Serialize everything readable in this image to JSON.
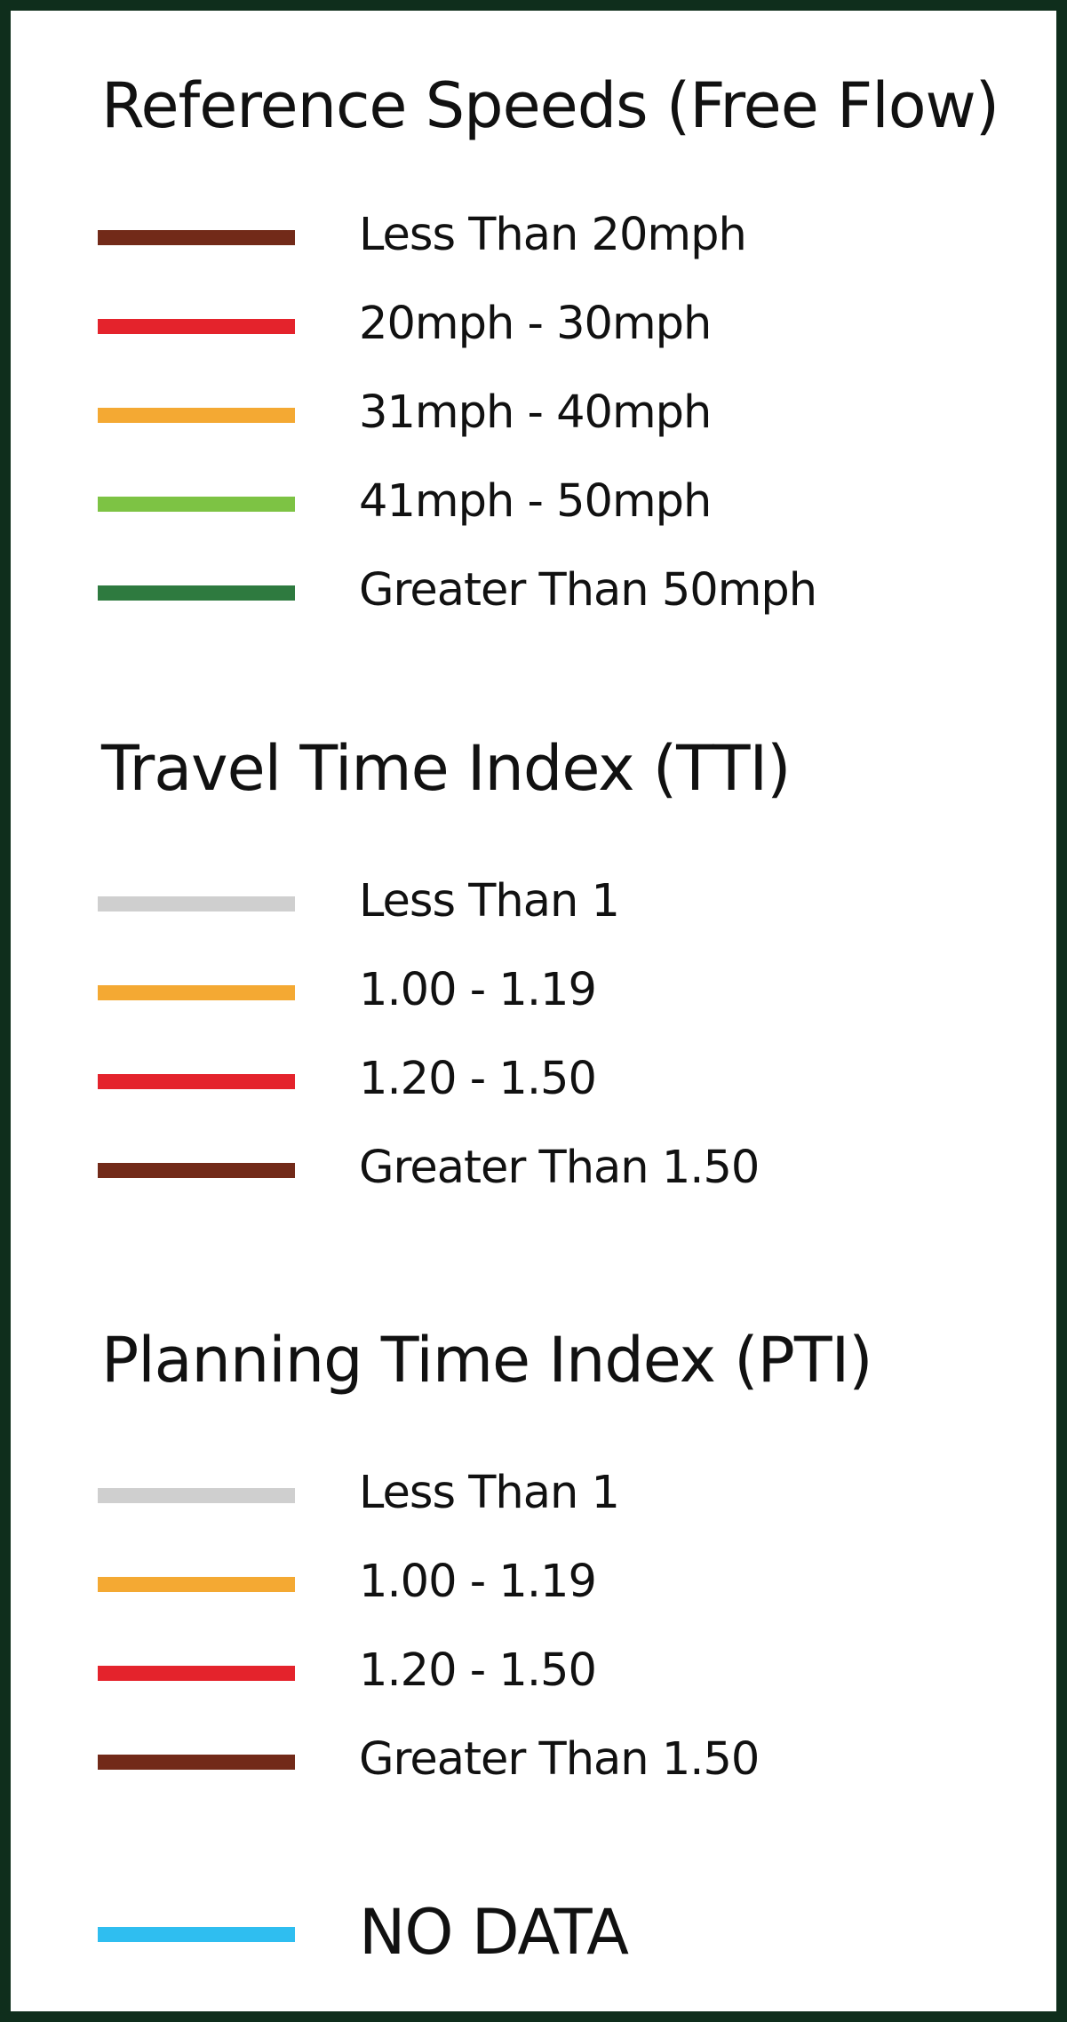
{
  "colors": {
    "border": "#0f2e1c",
    "dark_brown": "#722a19",
    "red": "#e4232c",
    "orange": "#f4a933",
    "light_green": "#7dc344",
    "dark_green": "#2e7a3f",
    "light_gray": "#cfcfcf",
    "sky_blue": "#2fbef0"
  },
  "sections": [
    {
      "title": "Reference Speeds (Free Flow)",
      "items": [
        {
          "label": "Less Than 20mph",
          "color": "#722a19"
        },
        {
          "label": "20mph - 30mph",
          "color": "#e4232c"
        },
        {
          "label": "31mph - 40mph",
          "color": "#f4a933"
        },
        {
          "label": "41mph - 50mph",
          "color": "#7dc344"
        },
        {
          "label": "Greater Than 50mph",
          "color": "#2e7a3f"
        }
      ]
    },
    {
      "title": "Travel Time Index (TTI)",
      "items": [
        {
          "label": "Less Than 1",
          "color": "#cfcfcf"
        },
        {
          "label": "1.00 - 1.19",
          "color": "#f4a933"
        },
        {
          "label": "1.20 - 1.50",
          "color": "#e4232c"
        },
        {
          "label": "Greater Than 1.50",
          "color": "#722a19"
        }
      ]
    },
    {
      "title": "Planning Time Index (PTI)",
      "items": [
        {
          "label": "Less Than 1",
          "color": "#cfcfcf"
        },
        {
          "label": "1.00 - 1.19",
          "color": "#f4a933"
        },
        {
          "label": "1.20 - 1.50",
          "color": "#e4232c"
        },
        {
          "label": "Greater Than 1.50",
          "color": "#722a19"
        }
      ]
    }
  ],
  "no_data": {
    "label": "NO DATA",
    "color": "#2fbef0"
  }
}
